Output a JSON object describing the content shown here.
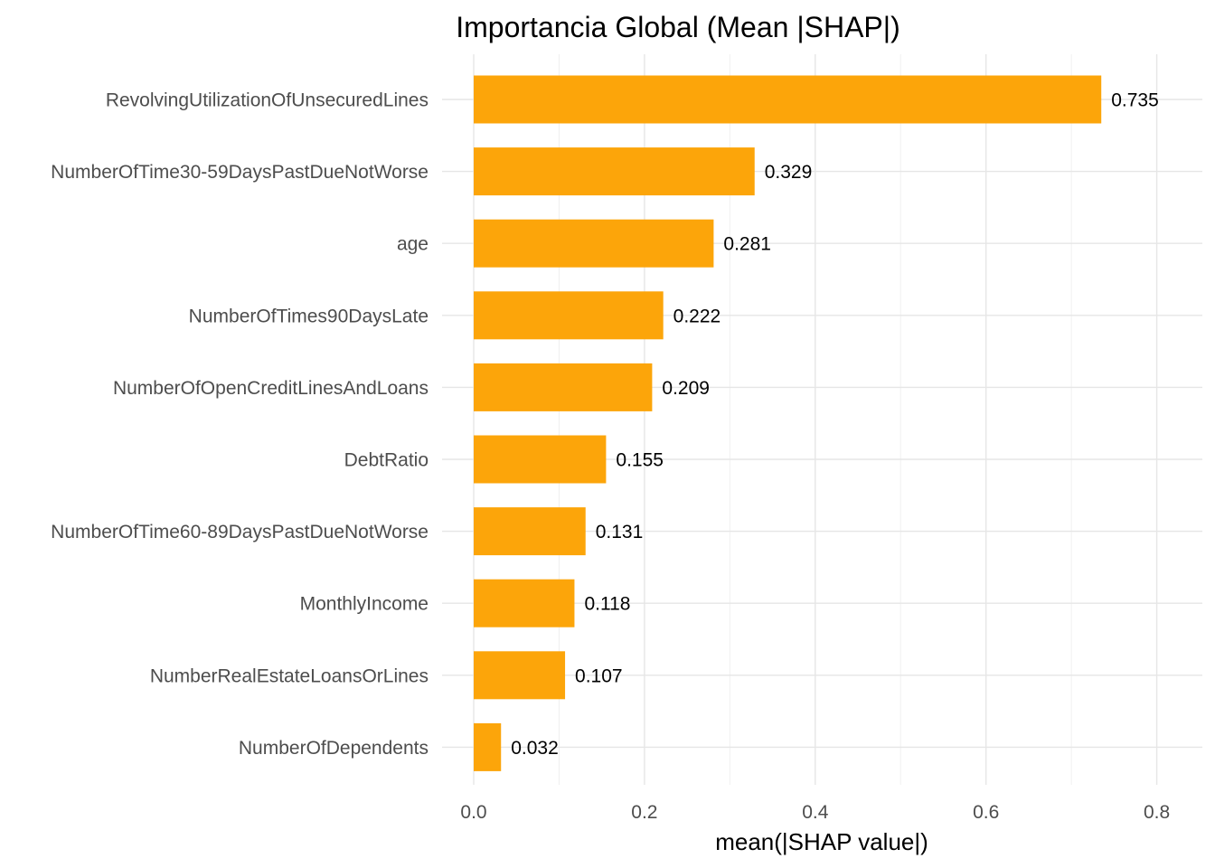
{
  "chart_data": {
    "type": "bar",
    "orientation": "horizontal",
    "title": "Importancia Global (Mean |SHAP|)",
    "xlabel": "mean(|SHAP value|)",
    "ylabel": "",
    "xlim": [
      0,
      0.85
    ],
    "xticks": [
      0,
      0.2,
      0.4,
      0.6,
      0.8
    ],
    "xtick_labels": [
      "0.0",
      "0.2",
      "0.4",
      "0.6",
      "0.8"
    ],
    "grid": true,
    "bar_color": "#FCA50A",
    "categories": [
      "RevolvingUtilizationOfUnsecuredLines",
      "NumberOfTime30-59DaysPastDueNotWorse",
      "age",
      "NumberOfTimes90DaysLate",
      "NumberOfOpenCreditLinesAndLoans",
      "DebtRatio",
      "NumberOfTime60-89DaysPastDueNotWorse",
      "MonthlyIncome",
      "NumberRealEstateLoansOrLines",
      "NumberOfDependents"
    ],
    "values": [
      0.735,
      0.329,
      0.281,
      0.222,
      0.209,
      0.155,
      0.131,
      0.118,
      0.107,
      0.032
    ],
    "value_labels": [
      "0.735",
      "0.329",
      "0.281",
      "0.222",
      "0.209",
      "0.155",
      "0.131",
      "0.118",
      "0.107",
      "0.032"
    ]
  }
}
